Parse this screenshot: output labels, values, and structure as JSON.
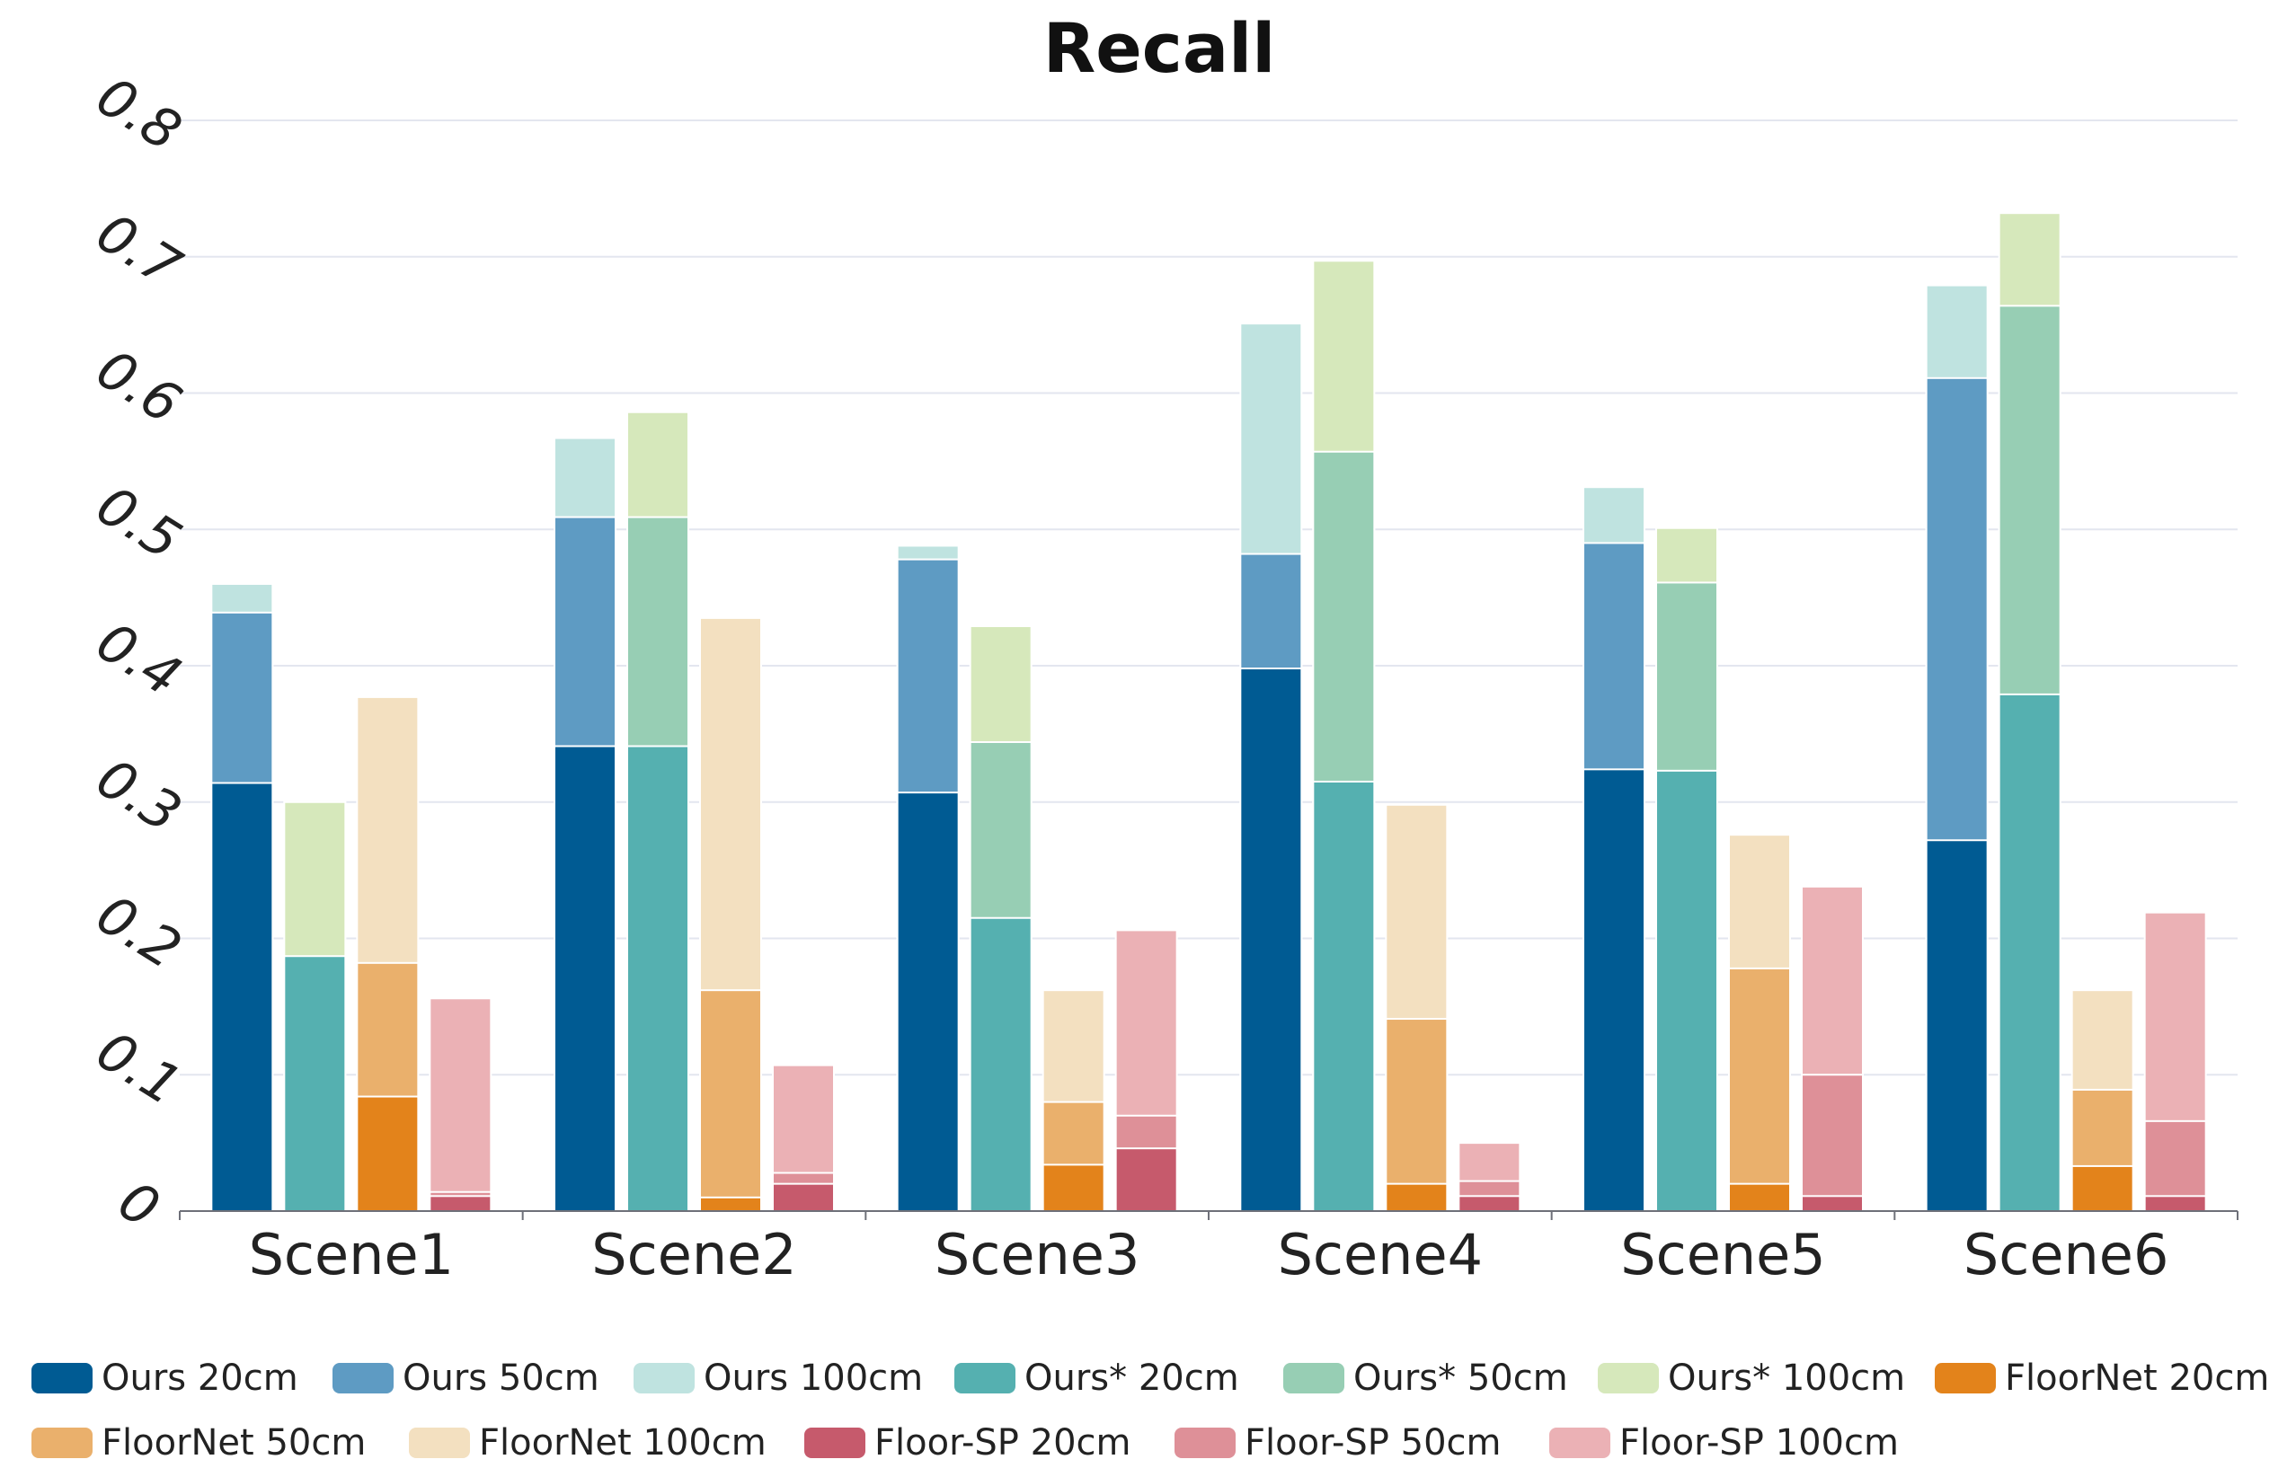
{
  "chart_data": {
    "type": "bar",
    "stacked_groups": true,
    "title": "Recall",
    "xlabel": "",
    "ylabel": "",
    "ylim": [
      0,
      0.8
    ],
    "yticks": [
      "0",
      "0.1",
      "0.2",
      "0.3",
      "0.4",
      "0.5",
      "0.6",
      "0.7",
      "0.8"
    ],
    "grid": true,
    "legend_position": "bottom",
    "categories": [
      "Scene1",
      "Scene2",
      "Scene3",
      "Scene4",
      "Scene5",
      "Scene6"
    ],
    "stacks": [
      {
        "name": "Ours",
        "series": [
          "Ours 20cm",
          "Ours 50cm",
          "Ours 100cm"
        ]
      },
      {
        "name": "Ours*",
        "series": [
          "Ours* 20cm",
          "Ours* 50cm",
          "Ours* 100cm"
        ]
      },
      {
        "name": "FloorNet",
        "series": [
          "FloorNet 20cm",
          "FloorNet 50cm",
          "FloorNet 100cm"
        ]
      },
      {
        "name": "Floor-SP",
        "series": [
          "Floor-SP 20cm",
          "Floor-SP 50cm",
          "Floor-SP 100cm"
        ]
      }
    ],
    "series": [
      {
        "name": "Ours 20cm",
        "color": "#005b93",
        "values": [
          0.314,
          0.341,
          0.307,
          0.398,
          0.324,
          0.272
        ]
      },
      {
        "name": "Ours 50cm",
        "color": "#5e9bc3",
        "values": [
          0.439,
          0.509,
          0.478,
          0.482,
          0.49,
          0.611
        ]
      },
      {
        "name": "Ours 100cm",
        "color": "#bfe3e0",
        "values": [
          0.46,
          0.567,
          0.488,
          0.651,
          0.531,
          0.679
        ]
      },
      {
        "name": "Ours* 20cm",
        "color": "#55b0b0",
        "values": [
          0.187,
          0.341,
          0.215,
          0.315,
          0.323,
          0.379
        ]
      },
      {
        "name": "Ours* 50cm",
        "color": "#97ceb4",
        "values": [
          0.3,
          0.509,
          0.344,
          0.557,
          0.461,
          0.664
        ]
      },
      {
        "name": "Ours* 100cm",
        "color": "#d6e8bb",
        "values": [
          0.3,
          0.586,
          0.429,
          0.697,
          0.501,
          0.732
        ]
      },
      {
        "name": "FloorNet 20cm",
        "color": "#e3831b",
        "values": [
          0.084,
          0.01,
          0.034,
          0.02,
          0.02,
          0.033
        ]
      },
      {
        "name": "FloorNet 50cm",
        "color": "#eab06c",
        "values": [
          0.182,
          0.162,
          0.08,
          0.141,
          0.178,
          0.089
        ]
      },
      {
        "name": "FloorNet 100cm",
        "color": "#f3e0c0",
        "values": [
          0.377,
          0.435,
          0.162,
          0.298,
          0.276,
          0.162
        ]
      },
      {
        "name": "Floor-SP 20cm",
        "color": "#c65a6c",
        "values": [
          0.011,
          0.02,
          0.046,
          0.011,
          0.011,
          0.011
        ]
      },
      {
        "name": "Floor-SP 50cm",
        "color": "#de9098",
        "values": [
          0.014,
          0.028,
          0.07,
          0.022,
          0.1,
          0.066
        ]
      },
      {
        "name": "Floor-SP 100cm",
        "color": "#ebb1b5",
        "values": [
          0.156,
          0.107,
          0.206,
          0.05,
          0.238,
          0.219
        ]
      }
    ]
  }
}
